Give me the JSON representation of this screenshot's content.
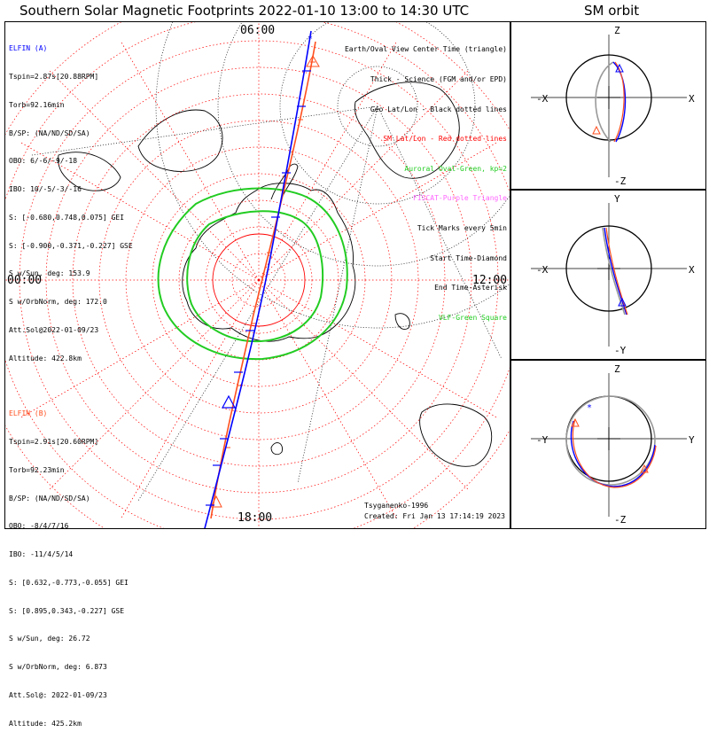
{
  "title": "Southern Solar Magnetic Footprints 2022-01-10 13:00 to 14:30 UTC",
  "sm_orbit_title": "SM orbit",
  "mlt_labels": {
    "top": "06:00",
    "bottom": "18:00",
    "left": "00:00",
    "right": "12:00"
  },
  "elfin_a": {
    "name": "ELFIN (A)",
    "color": "#0000ff",
    "lines": [
      "Tspin=2.87s[20.88RPM]",
      "Torb=92.16min",
      "B/SP: (NA/ND/SD/SA)",
      "OBO: 6/-6/-9/-18",
      "IBO: 10/-5/-3/-16",
      "S: [-0.680,0.748,0.075] GEI",
      "S: [-0.900,-0.371,-0.227] GSE",
      "S w/Sun, deg: 153.9",
      "S w/OrbNorm, deg: 172.0",
      "Att.Sol@2022-01-09/23",
      "Altitude: 422.8km"
    ]
  },
  "elfin_b": {
    "name": "ELFIN (B)",
    "color": "#ff4f1f",
    "lines": [
      "Tspin=2.91s[20.60RPM]",
      "Torb=92.23min",
      "B/SP: (NA/ND/SD/SA)",
      "OBO: -8/4/7/16",
      "IBO: -11/4/5/14",
      "S: [0.632,-0.773,-0.055] GEI",
      "S: [0.895,0.343,-0.227] GSE",
      "S w/Sun, deg: 26.72",
      "S w/OrbNorm, deg: 6.873",
      "Att.Sol@: 2022-01-09/23",
      "Altitude: 425.2km"
    ]
  },
  "legend": [
    {
      "text": "Earth/Oval View Center Time (triangle)",
      "color": "#000000"
    },
    {
      "text": "Thick - Science (FGM and/or EPD)",
      "color": "#000000"
    },
    {
      "text": "Geo Lat/Lon - Black dotted lines",
      "color": "#000000"
    },
    {
      "text": "SM Lat/Lon - Red dotted lines",
      "color": "#ff0000"
    },
    {
      "text": "Auroral Oval-Green, kp=2",
      "color": "#22cc22"
    },
    {
      "text": "FISCAT-Purple Triangle",
      "color": "#ff66ff"
    },
    {
      "text": "Tick Marks every 5min",
      "color": "#000000"
    },
    {
      "text": "Start Time-Diamond",
      "color": "#000000"
    },
    {
      "text": "End Time-Asterisk",
      "color": "#000000"
    },
    {
      "text": "VLF-Green Square",
      "color": "#22cc22"
    }
  ],
  "model": "Tsyganenko-1996",
  "created": "Created: Fri Jan 13 17:14:19 2023",
  "sm_panels": [
    {
      "top": "Z",
      "bottom": "-Z",
      "left": "-X",
      "right": "X"
    },
    {
      "top": "Y",
      "bottom": "-Y",
      "left": "-X",
      "right": "X"
    },
    {
      "top": "Z",
      "bottom": "-Z",
      "left": "-Y",
      "right": "Y"
    }
  ],
  "colors": {
    "elfin_a": "#0000ff",
    "elfin_b": "#ff4f1f",
    "oval": "#22cc22",
    "sm_grid": "#ff0000",
    "geo_grid": "#000000"
  }
}
